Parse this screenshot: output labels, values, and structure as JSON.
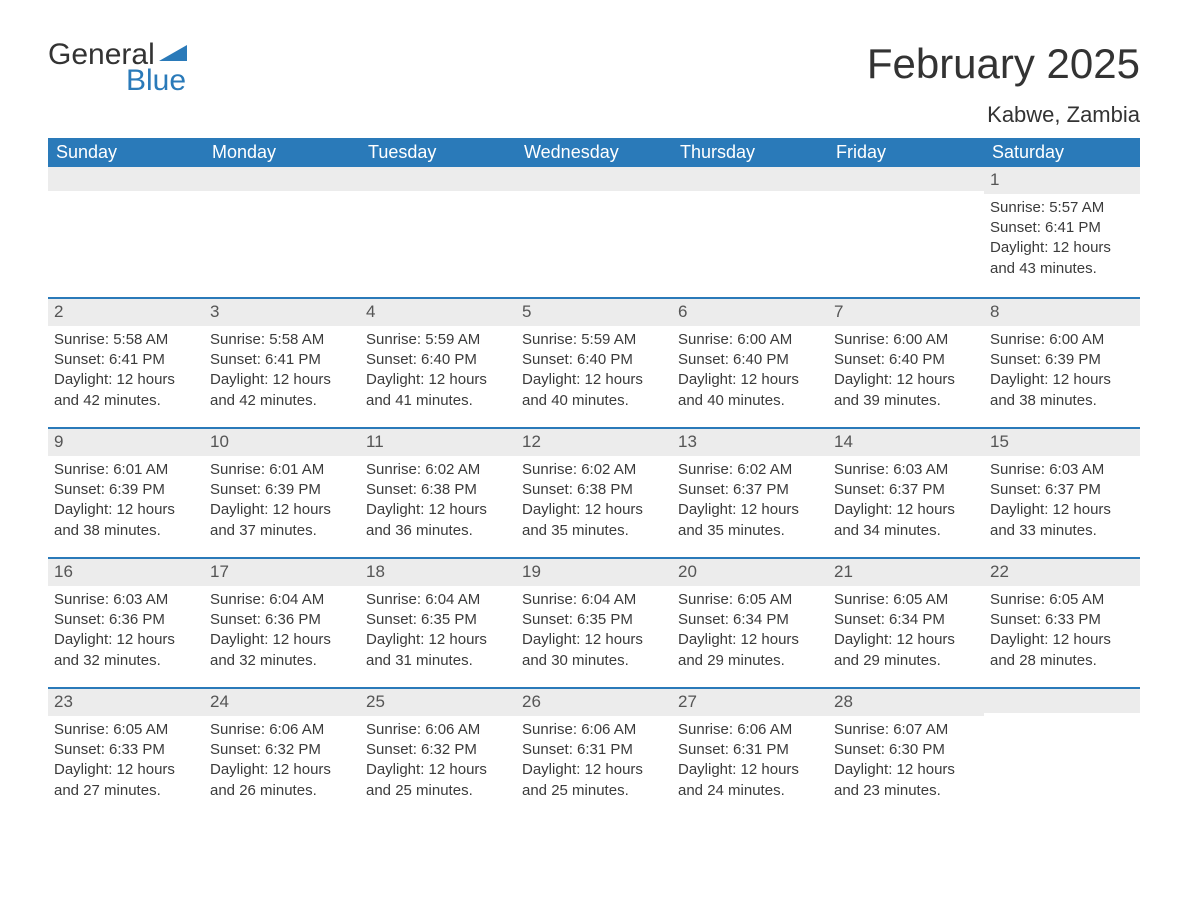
{
  "brand": {
    "word1": "General",
    "word2": "Blue",
    "flag_color": "#2a7ab9"
  },
  "title": "February 2025",
  "location": "Kabwe, Zambia",
  "colors": {
    "header_bg": "#2a7ab9",
    "header_text": "#ffffff",
    "row_divider": "#2a7ab9",
    "daynum_bg": "#ececec",
    "body_text": "#3b3b3b"
  },
  "labels": {
    "sunrise": "Sunrise:",
    "sunset": "Sunset:",
    "daylight": "Daylight:"
  },
  "day_headers": [
    "Sunday",
    "Monday",
    "Tuesday",
    "Wednesday",
    "Thursday",
    "Friday",
    "Saturday"
  ],
  "weeks": [
    [
      null,
      null,
      null,
      null,
      null,
      null,
      {
        "n": "1",
        "sr": "5:57 AM",
        "ss": "6:41 PM",
        "dl": "12 hours and 43 minutes."
      }
    ],
    [
      {
        "n": "2",
        "sr": "5:58 AM",
        "ss": "6:41 PM",
        "dl": "12 hours and 42 minutes."
      },
      {
        "n": "3",
        "sr": "5:58 AM",
        "ss": "6:41 PM",
        "dl": "12 hours and 42 minutes."
      },
      {
        "n": "4",
        "sr": "5:59 AM",
        "ss": "6:40 PM",
        "dl": "12 hours and 41 minutes."
      },
      {
        "n": "5",
        "sr": "5:59 AM",
        "ss": "6:40 PM",
        "dl": "12 hours and 40 minutes."
      },
      {
        "n": "6",
        "sr": "6:00 AM",
        "ss": "6:40 PM",
        "dl": "12 hours and 40 minutes."
      },
      {
        "n": "7",
        "sr": "6:00 AM",
        "ss": "6:40 PM",
        "dl": "12 hours and 39 minutes."
      },
      {
        "n": "8",
        "sr": "6:00 AM",
        "ss": "6:39 PM",
        "dl": "12 hours and 38 minutes."
      }
    ],
    [
      {
        "n": "9",
        "sr": "6:01 AM",
        "ss": "6:39 PM",
        "dl": "12 hours and 38 minutes."
      },
      {
        "n": "10",
        "sr": "6:01 AM",
        "ss": "6:39 PM",
        "dl": "12 hours and 37 minutes."
      },
      {
        "n": "11",
        "sr": "6:02 AM",
        "ss": "6:38 PM",
        "dl": "12 hours and 36 minutes."
      },
      {
        "n": "12",
        "sr": "6:02 AM",
        "ss": "6:38 PM",
        "dl": "12 hours and 35 minutes."
      },
      {
        "n": "13",
        "sr": "6:02 AM",
        "ss": "6:37 PM",
        "dl": "12 hours and 35 minutes."
      },
      {
        "n": "14",
        "sr": "6:03 AM",
        "ss": "6:37 PM",
        "dl": "12 hours and 34 minutes."
      },
      {
        "n": "15",
        "sr": "6:03 AM",
        "ss": "6:37 PM",
        "dl": "12 hours and 33 minutes."
      }
    ],
    [
      {
        "n": "16",
        "sr": "6:03 AM",
        "ss": "6:36 PM",
        "dl": "12 hours and 32 minutes."
      },
      {
        "n": "17",
        "sr": "6:04 AM",
        "ss": "6:36 PM",
        "dl": "12 hours and 32 minutes."
      },
      {
        "n": "18",
        "sr": "6:04 AM",
        "ss": "6:35 PM",
        "dl": "12 hours and 31 minutes."
      },
      {
        "n": "19",
        "sr": "6:04 AM",
        "ss": "6:35 PM",
        "dl": "12 hours and 30 minutes."
      },
      {
        "n": "20",
        "sr": "6:05 AM",
        "ss": "6:34 PM",
        "dl": "12 hours and 29 minutes."
      },
      {
        "n": "21",
        "sr": "6:05 AM",
        "ss": "6:34 PM",
        "dl": "12 hours and 29 minutes."
      },
      {
        "n": "22",
        "sr": "6:05 AM",
        "ss": "6:33 PM",
        "dl": "12 hours and 28 minutes."
      }
    ],
    [
      {
        "n": "23",
        "sr": "6:05 AM",
        "ss": "6:33 PM",
        "dl": "12 hours and 27 minutes."
      },
      {
        "n": "24",
        "sr": "6:06 AM",
        "ss": "6:32 PM",
        "dl": "12 hours and 26 minutes."
      },
      {
        "n": "25",
        "sr": "6:06 AM",
        "ss": "6:32 PM",
        "dl": "12 hours and 25 minutes."
      },
      {
        "n": "26",
        "sr": "6:06 AM",
        "ss": "6:31 PM",
        "dl": "12 hours and 25 minutes."
      },
      {
        "n": "27",
        "sr": "6:06 AM",
        "ss": "6:31 PM",
        "dl": "12 hours and 24 minutes."
      },
      {
        "n": "28",
        "sr": "6:07 AM",
        "ss": "6:30 PM",
        "dl": "12 hours and 23 minutes."
      },
      null
    ]
  ]
}
